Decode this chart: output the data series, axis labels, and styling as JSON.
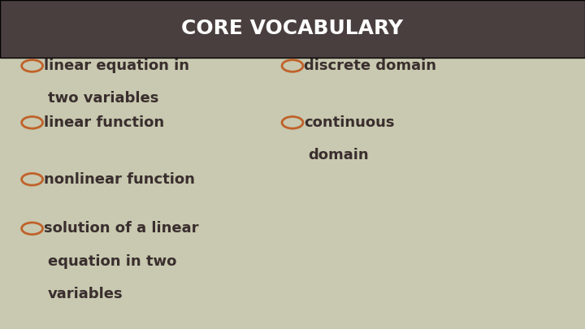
{
  "title": "CORE VOCABULARY",
  "title_bg_color": "#4a3f3f",
  "title_text_color": "#ffffff",
  "body_bg_color": "#c8c9b0",
  "bullet_color": "#c0622a",
  "text_color": "#3a2e2e",
  "left_bullets": [
    [
      "linear equation in",
      "two variables"
    ],
    [
      "linear function"
    ],
    [
      "nonlinear function"
    ],
    [
      "solution of a linear",
      "equation in two",
      "variables"
    ]
  ],
  "right_bullets": [
    [
      "discrete domain"
    ],
    [
      "continuous",
      "domain"
    ]
  ]
}
